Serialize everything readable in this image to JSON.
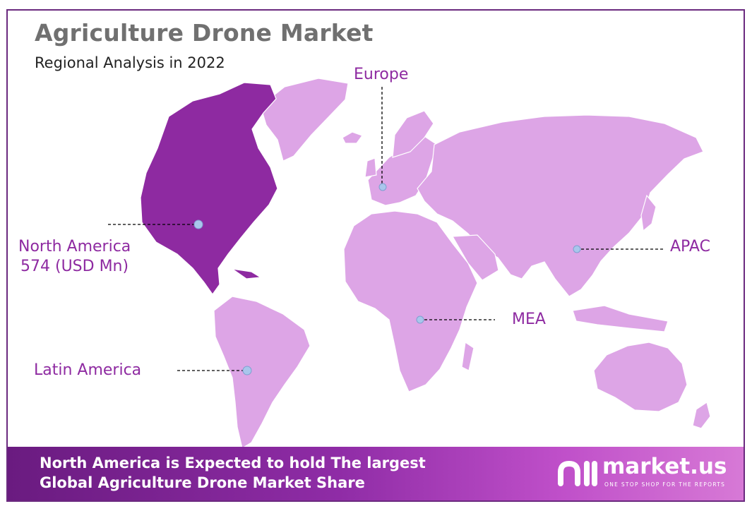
{
  "header": {
    "title": "Agriculture Drone Market",
    "subtitle": "Regional Analysis in 2022"
  },
  "regions": [
    {
      "name": "North America",
      "value": "574 (USD Mn)",
      "highlighted": true
    },
    {
      "name": "Europe"
    },
    {
      "name": "APAC"
    },
    {
      "name": "MEA"
    },
    {
      "name": "Latin America"
    }
  ],
  "footer": {
    "line1": "North America is Expected to hold The largest",
    "line2": "Global Agriculture Drone Market Share"
  },
  "brand": {
    "name": "market.us",
    "tagline": "ONE STOP SHOP FOR THE REPORTS"
  },
  "colors": {
    "highlight": "#8e2aa1",
    "land": "#dda5e6",
    "frame": "#6b2a7f",
    "marker": "#a9c6ec"
  }
}
